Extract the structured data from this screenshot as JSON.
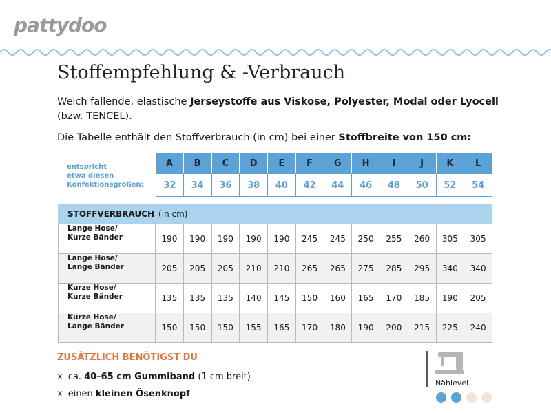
{
  "logo": "pattydoo",
  "title": "Stoffempfehlung & -Verbrauch",
  "intro": {
    "text": "Weich fallende, elastische ",
    "bold": "Jerseystoffe aus Viskose, Polyester, Modal oder Lyocell",
    "end": "(bzw. TENCEL)."
  },
  "note": {
    "text": "Die Tabelle enthält den Stoffverbrauch (in cm) bei einer ",
    "bold": "Stoffbreite von 150 cm",
    "end": ":"
  },
  "sizes": {
    "label": [
      "entspricht",
      "etwa diesen",
      "Konfektionsgrößen:"
    ],
    "letters": [
      "A",
      "B",
      "C",
      "D",
      "E",
      "F",
      "G",
      "H",
      "I",
      "J",
      "K",
      "L"
    ],
    "numbers": [
      32,
      34,
      36,
      38,
      40,
      42,
      44,
      46,
      48,
      50,
      52,
      54
    ]
  },
  "usage": {
    "header": "STOFFVERBRAUCH",
    "unit": "(in cm)",
    "rows": [
      {
        "label": [
          "Lange Hose/",
          "Kurze Bänder"
        ],
        "values": [
          190,
          190,
          190,
          190,
          190,
          245,
          245,
          250,
          255,
          260,
          305,
          305
        ]
      },
      {
        "label": [
          "Lange Hose/",
          "Lange Bänder"
        ],
        "values": [
          205,
          205,
          205,
          210,
          210,
          265,
          265,
          275,
          285,
          295,
          340,
          340
        ]
      },
      {
        "label": [
          "Kurze Hose/",
          "Kurze Bänder"
        ],
        "values": [
          135,
          135,
          135,
          140,
          145,
          150,
          160,
          165,
          170,
          185,
          190,
          205
        ]
      },
      {
        "label": [
          "Kurze Hose/",
          "Lange Bänder"
        ],
        "values": [
          150,
          150,
          150,
          155,
          165,
          170,
          180,
          190,
          200,
          215,
          225,
          240
        ]
      }
    ]
  },
  "extras": {
    "title": "ZUSÄTZLICH BENÖTIGST DU",
    "items": [
      {
        "bullet": "x",
        "prefix": "ca. ",
        "bold": "40–65 cm Gummiband",
        "suffix": " (1 cm breit)"
      },
      {
        "bullet": "x",
        "prefix": "einen ",
        "bold": "kleinen Ösenknopf"
      }
    ]
  },
  "level": {
    "label": "Nählevel",
    "value": 2,
    "max": 4
  }
}
